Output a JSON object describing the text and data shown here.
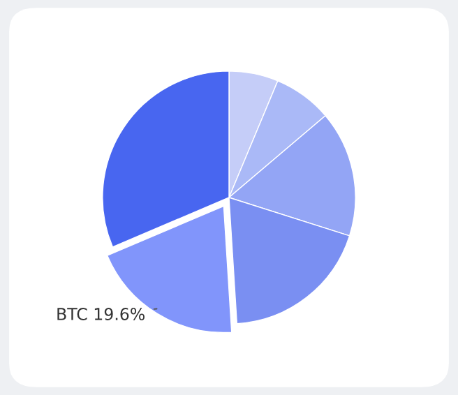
{
  "chart_data": {
    "type": "pie",
    "categories": [
      null,
      null,
      null,
      null,
      "BTC",
      null
    ],
    "values": [
      6.3,
      7.5,
      16.1,
      19.1,
      19.6,
      31.4
    ],
    "value_labels": [
      null,
      null,
      null,
      null,
      "19.6%",
      null
    ],
    "colors": [
      "#c5cdf8",
      "#aab9f7",
      "#93a5f5",
      "#7a8ff2",
      "#8195fb",
      "#4866f0"
    ]
  }
}
